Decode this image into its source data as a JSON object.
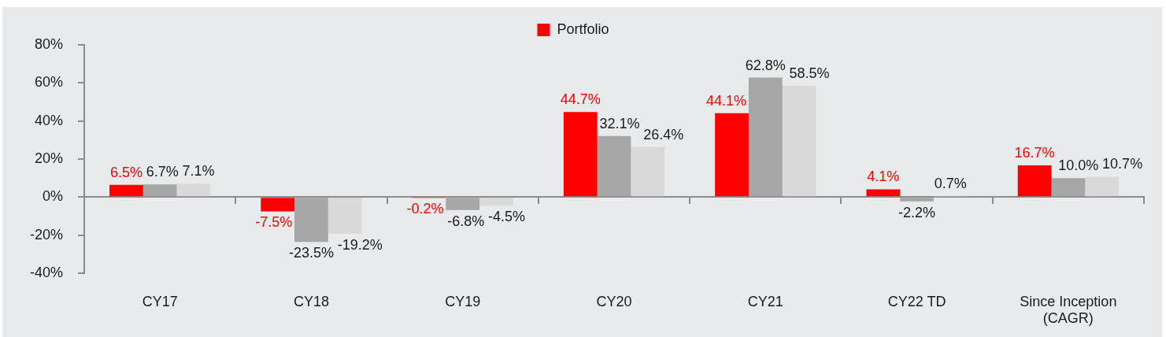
{
  "chart_data": {
    "type": "bar",
    "categories": [
      "CY17",
      "CY18",
      "CY19",
      "CY20",
      "CY21",
      "CY22 TD",
      "Since Inception (CAGR)"
    ],
    "series": [
      {
        "name": "Portfolio",
        "color": "#ff0000",
        "values": [
          6.5,
          -7.5,
          -0.2,
          44.7,
          44.1,
          4.1,
          16.7
        ],
        "value_labels": [
          "6.5%",
          "-7.5%",
          "-0.2%",
          "44.7%",
          "44.1%",
          "4.1%",
          "16.7%"
        ]
      },
      {
        "color": "#a6a6a6",
        "values": [
          6.7,
          -23.5,
          -6.8,
          32.1,
          62.8,
          -2.2,
          10.0
        ],
        "value_labels": [
          "6.7%",
          "-23.5%",
          "-6.8%",
          "32.1%",
          "62.8%",
          "-2.2%",
          "10.0%"
        ]
      },
      {
        "color": "#d9d9d9",
        "values": [
          7.1,
          -19.2,
          -4.5,
          26.4,
          58.5,
          0.7,
          10.7
        ],
        "value_labels": [
          "7.1%",
          "-19.2%",
          "-4.5%",
          "26.4%",
          "58.5%",
          "0.7%",
          "10.7%"
        ]
      }
    ],
    "ylim": [
      -40,
      80
    ],
    "yticks": [
      {
        "value": -40,
        "label": "-40%"
      },
      {
        "value": -20,
        "label": "-20%"
      },
      {
        "value": 0,
        "label": "0%"
      },
      {
        "value": 20,
        "label": "20%"
      },
      {
        "value": 40,
        "label": "40%"
      },
      {
        "value": 60,
        "label": "60%"
      },
      {
        "value": 80,
        "label": "80%"
      }
    ],
    "legend": "top"
  }
}
